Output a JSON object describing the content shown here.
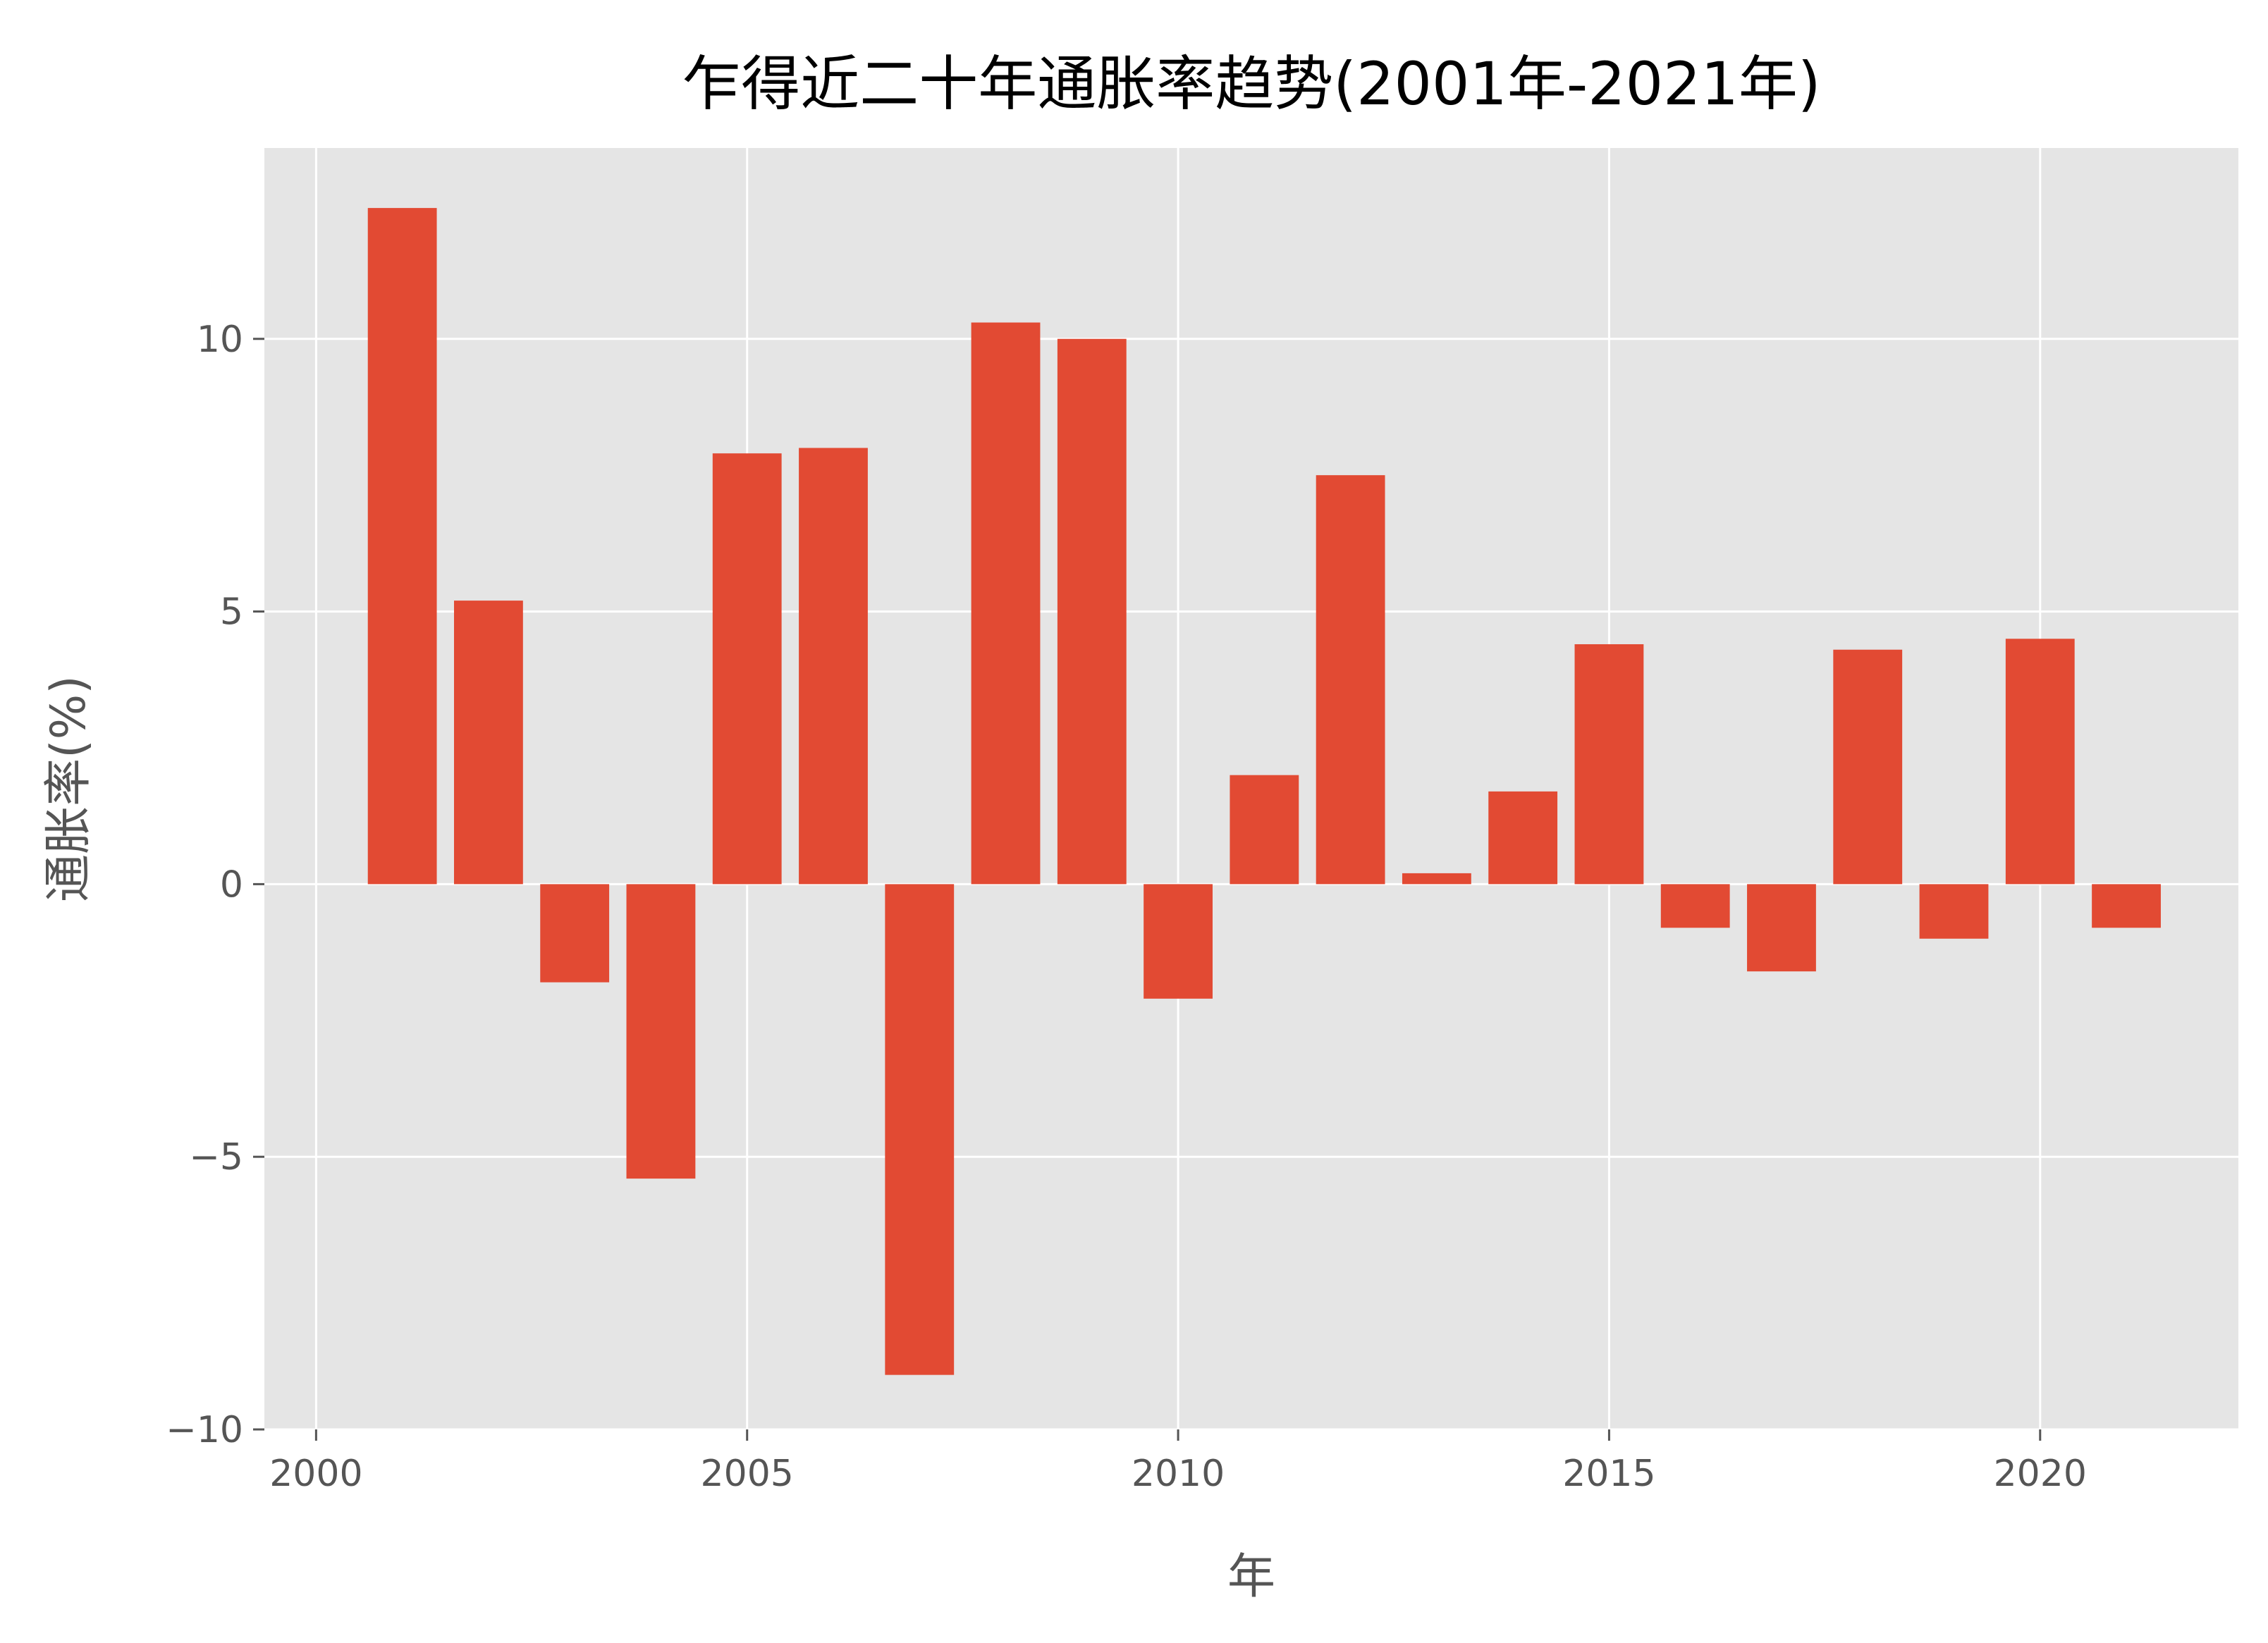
{
  "chart_data": {
    "type": "bar",
    "title": "乍得近二十年通胀率趋势(2001年-2021年)",
    "xlabel": "年",
    "ylabel": "通胀率(%)",
    "x": [
      2001,
      2002,
      2003,
      2004,
      2005,
      2006,
      2007,
      2008,
      2009,
      2010,
      2011,
      2012,
      2013,
      2014,
      2015,
      2016,
      2017,
      2018,
      2019,
      2020,
      2021
    ],
    "values": [
      12.4,
      5.2,
      -1.8,
      -5.4,
      7.9,
      8.0,
      -9.0,
      10.3,
      10.0,
      -2.1,
      2.0,
      7.5,
      0.2,
      1.7,
      4.4,
      -0.8,
      -1.6,
      4.3,
      -1.0,
      4.5,
      -0.8
    ],
    "xlim": [
      1999.4,
      2022.3
    ],
    "ylim": [
      -10.0,
      13.5
    ],
    "xticks": [
      2000,
      2005,
      2010,
      2015,
      2020
    ],
    "yticks": [
      -10,
      -5,
      0,
      5,
      10
    ],
    "ytick_labels": [
      "−10",
      "−5",
      "0",
      "5",
      "10"
    ],
    "grid": true,
    "colors": {
      "bar": "#e24a33",
      "plot_background": "#e5e5e5",
      "grid": "#ffffff",
      "tick_text": "#555555",
      "title_text": "#000000"
    }
  }
}
